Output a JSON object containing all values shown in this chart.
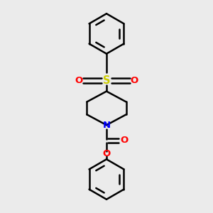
{
  "bg_color": "#ebebeb",
  "bond_color": "#000000",
  "sulfur_color": "#cccc00",
  "oxygen_color": "#ff0000",
  "nitrogen_color": "#0000ff",
  "line_width": 1.8,
  "font_size": 9.5,
  "figsize": [
    3.0,
    3.0
  ],
  "dpi": 100,
  "xlim": [
    0,
    1
  ],
  "ylim": [
    0,
    1
  ]
}
